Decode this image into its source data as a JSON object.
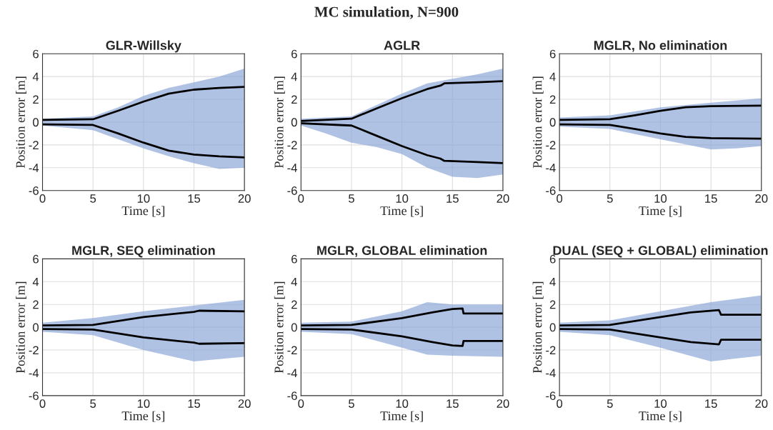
{
  "chart_data": [
    {
      "type": "line",
      "title": "GLR-Willsky",
      "xlabel": "Time [s]",
      "ylabel": "Position error [m]",
      "annotations": [
        "MC simulation, N=900"
      ],
      "xlim": [
        0,
        20
      ],
      "ylim": [
        -6,
        6
      ],
      "xticks": [
        0,
        5,
        10,
        15,
        20
      ],
      "yticks": [
        -6,
        -4,
        -2,
        0,
        2,
        4,
        6
      ],
      "grid": true,
      "series": [
        {
          "type": "area",
          "color": "#8fa8d8",
          "x": [
            0,
            2.5,
            5,
            7.5,
            10,
            12.5,
            15,
            17.5,
            20
          ],
          "values": [
            null,
            null,
            null,
            null,
            null,
            null,
            null,
            null,
            null
          ],
          "upper": [
            0.3,
            0.4,
            0.5,
            1.3,
            2.3,
            3.0,
            3.5,
            4.0,
            4.7
          ],
          "lower": [
            -0.3,
            -0.5,
            -0.7,
            -1.5,
            -2.3,
            -3.0,
            -3.6,
            -4.1,
            -4.0
          ]
        },
        {
          "color": "#000000",
          "x": [
            0,
            5,
            7.5,
            10,
            12.5,
            15,
            17.5,
            20
          ],
          "values": [
            0.2,
            0.25,
            1.0,
            1.8,
            2.5,
            2.85,
            3.0,
            3.1
          ]
        },
        {
          "color": "#000000",
          "x": [
            0,
            5,
            7.5,
            10,
            12.5,
            15,
            17.5,
            20
          ],
          "values": [
            -0.2,
            -0.25,
            -1.0,
            -1.8,
            -2.5,
            -2.85,
            -3.0,
            -3.1
          ]
        }
      ]
    },
    {
      "type": "line",
      "title": "AGLR",
      "xlabel": "Time [s]",
      "ylabel": "Position error [m]",
      "xlim": [
        0,
        20
      ],
      "ylim": [
        -6,
        6
      ],
      "xticks": [
        0,
        5,
        10,
        15,
        20
      ],
      "yticks": [
        -6,
        -4,
        -2,
        0,
        2,
        4,
        6
      ],
      "grid": true,
      "series": [
        {
          "type": "area",
          "color": "#8fa8d8",
          "x": [
            0,
            2.5,
            5,
            7.5,
            10,
            12.5,
            15,
            17.5,
            20
          ],
          "values": [
            null,
            null,
            null,
            null,
            null,
            null,
            null,
            null,
            null
          ],
          "upper": [
            0.3,
            0.4,
            0.5,
            1.5,
            2.5,
            3.4,
            3.8,
            4.2,
            4.7
          ],
          "lower": [
            -0.3,
            -1.0,
            -1.8,
            -2.2,
            -2.8,
            -4.0,
            -4.8,
            -4.9,
            -4.6
          ]
        },
        {
          "color": "#000000",
          "x": [
            0,
            5,
            7.5,
            10,
            12.5,
            13.8,
            14.2,
            17.5,
            20
          ],
          "values": [
            0.1,
            0.3,
            1.2,
            2.1,
            2.9,
            3.2,
            3.4,
            3.5,
            3.6
          ]
        },
        {
          "color": "#000000",
          "x": [
            0,
            5,
            7.5,
            10,
            12.5,
            13.8,
            14.2,
            17.5,
            20
          ],
          "values": [
            -0.1,
            -0.3,
            -1.2,
            -2.1,
            -2.9,
            -3.2,
            -3.4,
            -3.5,
            -3.6
          ]
        }
      ]
    },
    {
      "type": "line",
      "title": "MGLR, No elimination",
      "xlabel": "Time [s]",
      "ylabel": "Position error [m]",
      "xlim": [
        0,
        20
      ],
      "ylim": [
        -6,
        6
      ],
      "xticks": [
        0,
        5,
        10,
        15,
        20
      ],
      "yticks": [
        -6,
        -4,
        -2,
        0,
        2,
        4,
        6
      ],
      "grid": true,
      "series": [
        {
          "type": "area",
          "color": "#8fa8d8",
          "x": [
            0,
            5,
            10,
            15,
            17.5,
            20
          ],
          "values": [
            null,
            null,
            null,
            null,
            null,
            null
          ],
          "upper": [
            0.4,
            0.6,
            1.3,
            1.7,
            1.9,
            2.1
          ],
          "lower": [
            -0.4,
            -0.6,
            -1.5,
            -2.4,
            -2.3,
            -2.1
          ]
        },
        {
          "color": "#000000",
          "x": [
            0,
            5,
            7.5,
            10,
            12.5,
            15,
            20
          ],
          "values": [
            0.2,
            0.25,
            0.6,
            1.0,
            1.3,
            1.4,
            1.45
          ]
        },
        {
          "color": "#000000",
          "x": [
            0,
            5,
            7.5,
            10,
            12.5,
            15,
            20
          ],
          "values": [
            -0.2,
            -0.25,
            -0.6,
            -1.0,
            -1.3,
            -1.4,
            -1.45
          ]
        }
      ]
    },
    {
      "type": "line",
      "title": "MGLR, SEQ elimination",
      "xlabel": "Time [s]",
      "ylabel": "Position error [m]",
      "xlim": [
        0,
        20
      ],
      "ylim": [
        -6,
        6
      ],
      "xticks": [
        0,
        5,
        10,
        15,
        20
      ],
      "yticks": [
        -6,
        -4,
        -2,
        0,
        2,
        4,
        6
      ],
      "grid": true,
      "series": [
        {
          "type": "area",
          "color": "#8fa8d8",
          "x": [
            0,
            5,
            10,
            15,
            20
          ],
          "values": [
            null,
            null,
            null,
            null,
            null
          ],
          "upper": [
            0.4,
            0.8,
            1.4,
            1.9,
            2.4
          ],
          "lower": [
            -0.4,
            -0.7,
            -2.0,
            -3.0,
            -2.6
          ]
        },
        {
          "color": "#000000",
          "x": [
            0,
            5,
            10,
            15,
            15.5,
            20
          ],
          "values": [
            0.15,
            0.2,
            0.9,
            1.35,
            1.45,
            1.4
          ]
        },
        {
          "color": "#000000",
          "x": [
            0,
            5,
            10,
            15,
            15.5,
            20
          ],
          "values": [
            -0.15,
            -0.2,
            -0.9,
            -1.35,
            -1.45,
            -1.4
          ]
        }
      ]
    },
    {
      "type": "line",
      "title": "MGLR, GLOBAL elimination",
      "xlabel": "Time [s]",
      "ylabel": "Position error [m]",
      "xlim": [
        0,
        20
      ],
      "ylim": [
        -6,
        6
      ],
      "xticks": [
        0,
        5,
        10,
        15,
        20
      ],
      "yticks": [
        -6,
        -4,
        -2,
        0,
        2,
        4,
        6
      ],
      "grid": true,
      "series": [
        {
          "type": "area",
          "color": "#8fa8d8",
          "x": [
            0,
            5,
            10,
            12.5,
            15,
            20
          ],
          "values": [
            null,
            null,
            null,
            null,
            null,
            null
          ],
          "upper": [
            0.4,
            0.5,
            1.4,
            2.2,
            2.0,
            2.0
          ],
          "lower": [
            -0.4,
            -0.6,
            -1.8,
            -2.4,
            -2.5,
            -2.6
          ]
        },
        {
          "color": "#000000",
          "x": [
            0,
            5,
            10,
            13,
            15,
            16,
            16.1,
            20
          ],
          "values": [
            0.15,
            0.2,
            0.8,
            1.3,
            1.6,
            1.65,
            1.2,
            1.2
          ]
        },
        {
          "color": "#000000",
          "x": [
            0,
            5,
            10,
            13,
            15,
            16,
            16.1,
            20
          ],
          "values": [
            -0.15,
            -0.2,
            -0.8,
            -1.3,
            -1.6,
            -1.65,
            -1.2,
            -1.2
          ]
        }
      ]
    },
    {
      "type": "line",
      "title": "DUAL (SEQ + GLOBAL) elimination",
      "xlabel": "Time [s]",
      "ylabel": "Position error [m]",
      "xlim": [
        0,
        20
      ],
      "ylim": [
        -6,
        6
      ],
      "xticks": [
        0,
        5,
        10,
        15,
        20
      ],
      "yticks": [
        -6,
        -4,
        -2,
        0,
        2,
        4,
        6
      ],
      "grid": true,
      "series": [
        {
          "type": "area",
          "color": "#8fa8d8",
          "x": [
            0,
            5,
            10,
            15,
            20
          ],
          "values": [
            null,
            null,
            null,
            null,
            null
          ],
          "upper": [
            0.4,
            0.6,
            1.4,
            2.2,
            2.8
          ],
          "lower": [
            -0.4,
            -0.7,
            -1.8,
            -3.0,
            -2.5
          ]
        },
        {
          "color": "#000000",
          "x": [
            0,
            5,
            10,
            13,
            15.8,
            16,
            20
          ],
          "values": [
            0.15,
            0.2,
            0.9,
            1.3,
            1.5,
            1.1,
            1.1
          ]
        },
        {
          "color": "#000000",
          "x": [
            0,
            5,
            10,
            13,
            15.8,
            16,
            20
          ],
          "values": [
            -0.15,
            -0.2,
            -0.9,
            -1.3,
            -1.5,
            -1.1,
            -1.1
          ]
        }
      ]
    }
  ]
}
